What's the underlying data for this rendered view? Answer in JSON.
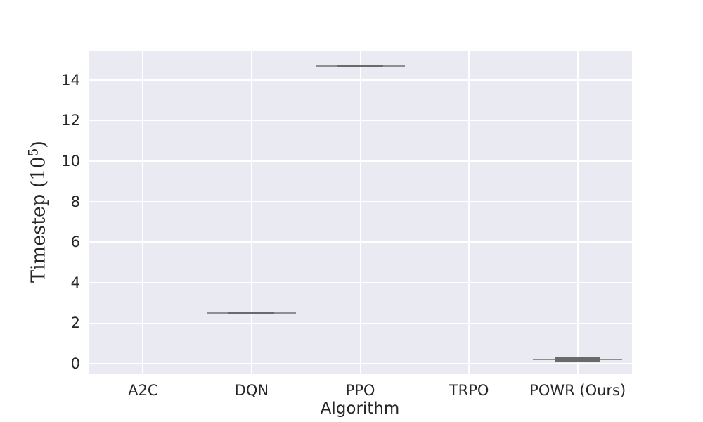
{
  "chart_data": {
    "type": "box",
    "title": "",
    "xlabel": "Algorithm",
    "ylabel": "Timestep (10^5)",
    "ylabel_parts": {
      "pre": "Timestep (10",
      "sup": "5",
      "post": ")"
    },
    "categories": [
      "A2C",
      "DQN",
      "PPO",
      "TRPO",
      "POWR (Ours)"
    ],
    "yticks": [
      0,
      2,
      4,
      6,
      8,
      10,
      12,
      14
    ],
    "ylim": [
      -0.52,
      15.45
    ],
    "grid": true,
    "legend": false,
    "orientation": "vertical",
    "series": [
      {
        "name": "A2C",
        "stats": null
      },
      {
        "name": "DQN",
        "stats": {
          "median": 2.5,
          "q1": 2.47,
          "q3": 2.53,
          "whisker_low": 2.45,
          "whisker_high": 2.55
        }
      },
      {
        "name": "PPO",
        "stats": {
          "median": 14.7,
          "q1": 14.68,
          "q3": 14.72,
          "whisker_low": 14.65,
          "whisker_high": 14.74
        }
      },
      {
        "name": "TRPO",
        "stats": null
      },
      {
        "name": "POWR (Ours)",
        "stats": {
          "median": 0.2,
          "q1": 0.09,
          "q3": 0.32,
          "whisker_low": 0.05,
          "whisker_high": 0.35
        }
      }
    ],
    "colors": {
      "figure_bg": "#ffffff",
      "plot_bg": "#eaeaf2",
      "grid": "#ffffff",
      "whisker_line": "#8f8f8f",
      "box_edge": "#6a6a6a",
      "box_fill": "rgba(110,110,110,0.18)",
      "text": "#262626"
    }
  }
}
